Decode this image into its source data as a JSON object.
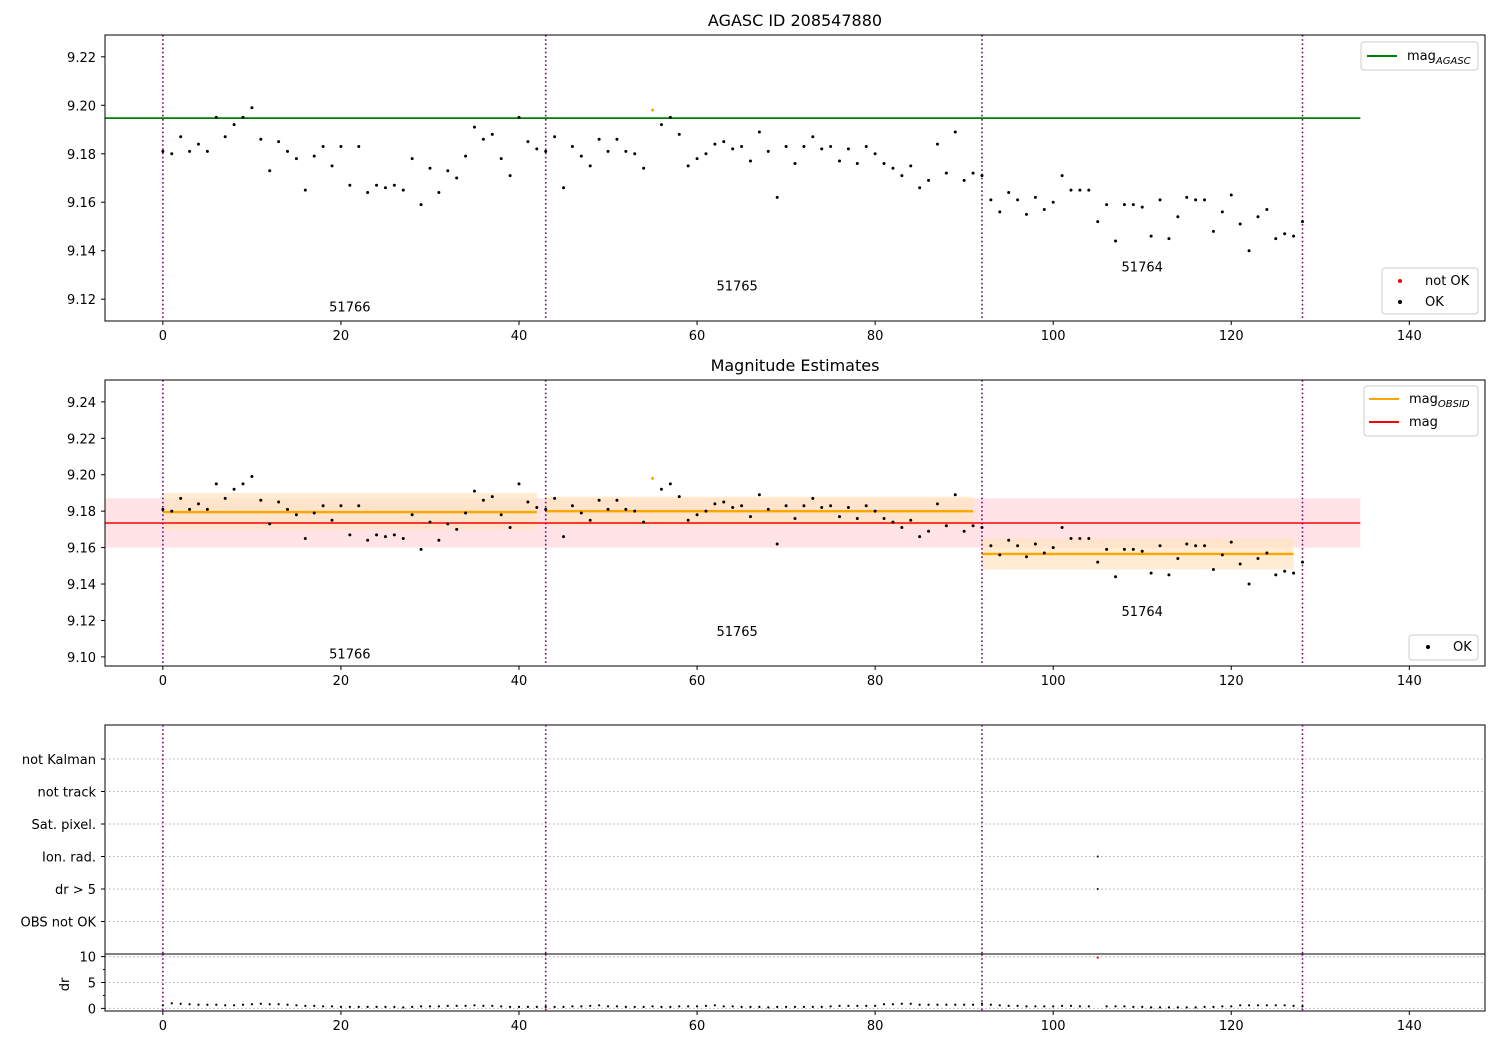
{
  "figure": {
    "width": 1500,
    "height": 1050,
    "background": "#ffffff"
  },
  "colors": {
    "ok": "#000000",
    "not_ok": "#ff0000",
    "orange": "#ffa500",
    "agasc_line": "#008000",
    "mag_line": "#ff0000",
    "mag_band": "#ffc0c8",
    "obsid_band": "#ffe4bf",
    "obs_boundary": "#800080"
  },
  "chart_data": [
    {
      "id": "top",
      "type": "scatter",
      "title": "AGASC ID 208547880",
      "xlim": [
        -6.5,
        148.5
      ],
      "ylim": [
        9.111,
        9.229
      ],
      "xticks": [
        0,
        20,
        40,
        60,
        80,
        100,
        120,
        140
      ],
      "yticks": [
        9.12,
        9.14,
        9.16,
        9.18,
        9.2,
        9.22
      ],
      "obs_boundaries": [
        0,
        43,
        92,
        128
      ],
      "obs_labels": [
        {
          "text": "51766",
          "x": 21,
          "y": 9.115
        },
        {
          "text": "51765",
          "x": 64.5,
          "y": 9.1235
        },
        {
          "text": "51764",
          "x": 110,
          "y": 9.1315
        }
      ],
      "mag_agasc": {
        "value": 9.1947,
        "x0": -6.5,
        "x1": 134.5
      },
      "x": [
        0,
        1,
        2,
        3,
        4,
        5,
        6,
        7,
        8,
        9,
        10,
        11,
        12,
        13,
        14,
        15,
        16,
        17,
        18,
        19,
        20,
        21,
        22,
        23,
        24,
        25,
        26,
        27,
        28,
        29,
        30,
        31,
        32,
        33,
        34,
        35,
        36,
        37,
        38,
        39,
        40,
        41,
        42,
        43,
        44,
        45,
        46,
        47,
        48,
        49,
        50,
        51,
        52,
        53,
        54,
        55,
        56,
        57,
        58,
        59,
        60,
        61,
        62,
        63,
        64,
        65,
        66,
        67,
        68,
        69,
        70,
        71,
        72,
        73,
        74,
        75,
        76,
        77,
        78,
        79,
        80,
        81,
        82,
        83,
        84,
        85,
        86,
        87,
        88,
        89,
        90,
        91,
        92,
        93,
        94,
        95,
        96,
        97,
        98,
        99,
        100,
        101,
        102,
        103,
        104,
        105,
        106,
        107,
        108,
        109,
        110,
        111,
        112,
        113,
        114,
        115,
        116,
        117,
        118,
        119,
        120,
        121,
        122,
        123,
        124,
        125,
        126,
        127,
        128
      ],
      "y": [
        9.181,
        9.18,
        9.187,
        9.181,
        9.184,
        9.181,
        9.195,
        9.187,
        9.192,
        9.195,
        9.199,
        9.186,
        9.173,
        9.185,
        9.181,
        9.178,
        9.165,
        9.179,
        9.183,
        9.175,
        9.183,
        9.167,
        9.183,
        9.164,
        9.167,
        9.166,
        9.167,
        9.165,
        9.178,
        9.159,
        9.174,
        9.164,
        9.173,
        9.17,
        9.179,
        9.191,
        9.186,
        9.188,
        9.178,
        9.171,
        9.195,
        9.185,
        9.182,
        9.181,
        9.187,
        9.166,
        9.183,
        9.179,
        9.175,
        9.186,
        9.181,
        9.186,
        9.181,
        9.18,
        9.174,
        9.198,
        9.192,
        9.195,
        9.188,
        9.175,
        9.178,
        9.18,
        9.184,
        9.185,
        9.182,
        9.183,
        9.177,
        9.189,
        9.181,
        9.162,
        9.183,
        9.176,
        9.183,
        9.187,
        9.182,
        9.183,
        9.177,
        9.182,
        9.176,
        9.183,
        9.18,
        9.176,
        9.174,
        9.171,
        9.175,
        9.166,
        9.169,
        9.184,
        9.172,
        9.189,
        9.169,
        9.172,
        9.171,
        9.161,
        9.156,
        9.164,
        9.161,
        9.155,
        9.162,
        9.157,
        9.16,
        9.171,
        9.165,
        9.165,
        9.165,
        9.152,
        9.159,
        9.144,
        9.159,
        9.159,
        9.158,
        9.146,
        9.161,
        9.145,
        9.154,
        9.162,
        9.161,
        9.161,
        9.148,
        9.156,
        9.163,
        9.151,
        9.14,
        9.154,
        9.157,
        9.145,
        9.147,
        9.146,
        9.152
      ],
      "point_colors_by_index": {
        "55": "#ffa500"
      },
      "legend_top": [
        {
          "label": "mag",
          "subscript": "AGASC",
          "color": "#008000"
        }
      ],
      "legend_bottom": [
        {
          "label": "not OK",
          "color": "#ff0000"
        },
        {
          "label": "OK",
          "color": "#000000"
        }
      ]
    },
    {
      "id": "middle",
      "type": "scatter",
      "title": "Magnitude Estimates",
      "xlim": [
        -6.5,
        148.5
      ],
      "ylim": [
        9.095,
        9.252
      ],
      "xticks": [
        0,
        20,
        40,
        60,
        80,
        100,
        120,
        140
      ],
      "yticks": [
        9.1,
        9.12,
        9.14,
        9.16,
        9.18,
        9.2,
        9.22,
        9.24
      ],
      "obs_boundaries": [
        0,
        43,
        92,
        128
      ],
      "obs_labels": [
        {
          "text": "51766",
          "x": 21,
          "y": 9.099
        },
        {
          "text": "51765",
          "x": 64.5,
          "y": 9.1115
        },
        {
          "text": "51764",
          "x": 110,
          "y": 9.1225
        }
      ],
      "mag": {
        "value": 9.1735,
        "low": 9.16,
        "high": 9.187,
        "x0": -6.5,
        "x1": 134.5
      },
      "obsid_mags": [
        {
          "x0": 0,
          "x1": 42,
          "value": 9.1795,
          "low": 9.17,
          "high": 9.19
        },
        {
          "x0": 43,
          "x1": 91,
          "value": 9.18,
          "low": 9.172,
          "high": 9.188
        },
        {
          "x0": 92,
          "x1": 127,
          "value": 9.1565,
          "low": 9.148,
          "high": 9.165
        }
      ],
      "legend_top": [
        {
          "label": "mag",
          "subscript": "OBSID",
          "color": "#ffa500"
        },
        {
          "label": "mag",
          "subscript": "",
          "color": "#ff0000"
        }
      ],
      "legend_bottom": [
        {
          "label": "OK",
          "color": "#000000"
        }
      ]
    },
    {
      "id": "flags",
      "type": "scatter",
      "xlim": [
        -6.5,
        148.5
      ],
      "ylabels": [
        "not Kalman",
        "not track",
        "Sat. pixel.",
        "Ion. rad.",
        "dr > 5",
        "OBS not OK"
      ],
      "flag_points": [
        {
          "row": "Ion. rad.",
          "x": 105
        },
        {
          "row": "dr > 5",
          "x": 105
        }
      ]
    },
    {
      "id": "dr",
      "type": "scatter",
      "ylabel": "dr",
      "xlim": [
        -6.5,
        148.5
      ],
      "ylim": [
        -0.5,
        10.5
      ],
      "yticks": [
        0,
        5,
        10
      ],
      "xticks": [
        0,
        20,
        40,
        60,
        80,
        100,
        120,
        140
      ],
      "x": [
        0,
        1,
        2,
        3,
        4,
        5,
        6,
        7,
        8,
        9,
        10,
        11,
        12,
        13,
        14,
        15,
        16,
        17,
        18,
        19,
        20,
        21,
        22,
        23,
        24,
        25,
        26,
        27,
        28,
        29,
        30,
        31,
        32,
        33,
        34,
        35,
        36,
        37,
        38,
        39,
        40,
        41,
        42,
        43,
        44,
        45,
        46,
        47,
        48,
        49,
        50,
        51,
        52,
        53,
        54,
        55,
        56,
        57,
        58,
        59,
        60,
        61,
        62,
        63,
        64,
        65,
        66,
        67,
        68,
        69,
        70,
        71,
        72,
        73,
        74,
        75,
        76,
        77,
        78,
        79,
        80,
        81,
        82,
        83,
        84,
        85,
        86,
        87,
        88,
        89,
        90,
        91,
        92,
        93,
        94,
        95,
        96,
        97,
        98,
        99,
        100,
        101,
        102,
        103,
        104,
        105,
        106,
        107,
        108,
        109,
        110,
        111,
        112,
        113,
        114,
        115,
        116,
        117,
        118,
        119,
        120,
        121,
        122,
        123,
        124,
        125,
        126,
        127,
        128
      ],
      "y": [
        0.6,
        1.0,
        0.9,
        0.8,
        0.7,
        0.7,
        0.7,
        0.6,
        0.6,
        0.7,
        0.8,
        0.9,
        0.8,
        0.8,
        0.7,
        0.6,
        0.5,
        0.5,
        0.4,
        0.4,
        0.3,
        0.3,
        0.3,
        0.3,
        0.3,
        0.3,
        0.3,
        0.2,
        0.3,
        0.4,
        0.4,
        0.4,
        0.5,
        0.5,
        0.5,
        0.6,
        0.5,
        0.5,
        0.4,
        0.3,
        0.3,
        0.3,
        0.3,
        0.3,
        0.3,
        0.3,
        0.4,
        0.4,
        0.5,
        0.6,
        0.4,
        0.4,
        0.3,
        0.3,
        0.3,
        0.4,
        0.3,
        0.3,
        0.4,
        0.4,
        0.4,
        0.5,
        0.6,
        0.4,
        0.4,
        0.3,
        0.3,
        0.3,
        0.2,
        0.3,
        0.3,
        0.3,
        0.3,
        0.3,
        0.3,
        0.4,
        0.5,
        0.5,
        0.5,
        0.5,
        0.5,
        0.8,
        0.8,
        0.9,
        0.9,
        0.7,
        0.7,
        0.7,
        0.7,
        0.7,
        0.7,
        0.7,
        0.9,
        0.7,
        0.6,
        0.5,
        0.5,
        0.4,
        0.4,
        0.4,
        0.4,
        0.5,
        0.5,
        0.4,
        0.4,
        9.8,
        0.4,
        0.4,
        0.4,
        0.3,
        0.3,
        0.2,
        0.2,
        0.2,
        0.2,
        0.2,
        0.2,
        0.3,
        0.3,
        0.4,
        0.4,
        0.6,
        0.6,
        0.6,
        0.6,
        0.6,
        0.6,
        0.5,
        0.4
      ],
      "point_colors_by_index": {
        "105": "#ff0000"
      }
    }
  ]
}
